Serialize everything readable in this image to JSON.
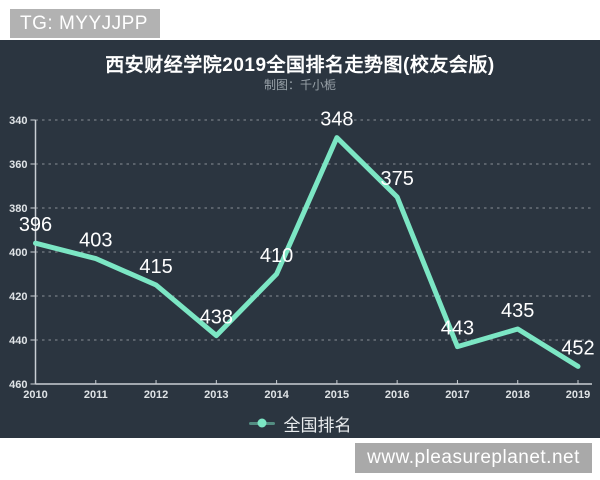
{
  "overlay": {
    "tg_banner": "TG: MYYJJPP",
    "watermark": "www.pleasureplanet.net"
  },
  "chart": {
    "title": "西安财经学院2019全国排名走势图(校友会版)",
    "subtitle": "制图：千小栀",
    "legend_label": "全国排名"
  },
  "chart_data": {
    "type": "line",
    "title": "西安财经学院2019全国排名走势图(校友会版)",
    "subtitle": "制图：千小栀",
    "x": [
      2010,
      2011,
      2012,
      2013,
      2014,
      2015,
      2016,
      2017,
      2018,
      2019
    ],
    "series": [
      {
        "name": "全国排名",
        "values": [
          396,
          403,
          415,
          438,
          410,
          348,
          375,
          443,
          435,
          452
        ]
      }
    ],
    "y_ticks": [
      340,
      360,
      380,
      400,
      420,
      440,
      460
    ],
    "y_axis_inverted": true,
    "ylim": [
      340,
      460
    ],
    "grid": "dashed-horizontal",
    "legend_position": "bottom",
    "legend": [
      "全国排名"
    ],
    "colors": {
      "background": "#2b3540",
      "line": "#7ce6c4",
      "grid": "rgba(255,255,255,0.45)",
      "axis": "#c9ced4",
      "tick_label": "#dfe3e6",
      "data_label": "#ffffff",
      "legend_line": "rgba(124,230,196,0.5)"
    }
  }
}
